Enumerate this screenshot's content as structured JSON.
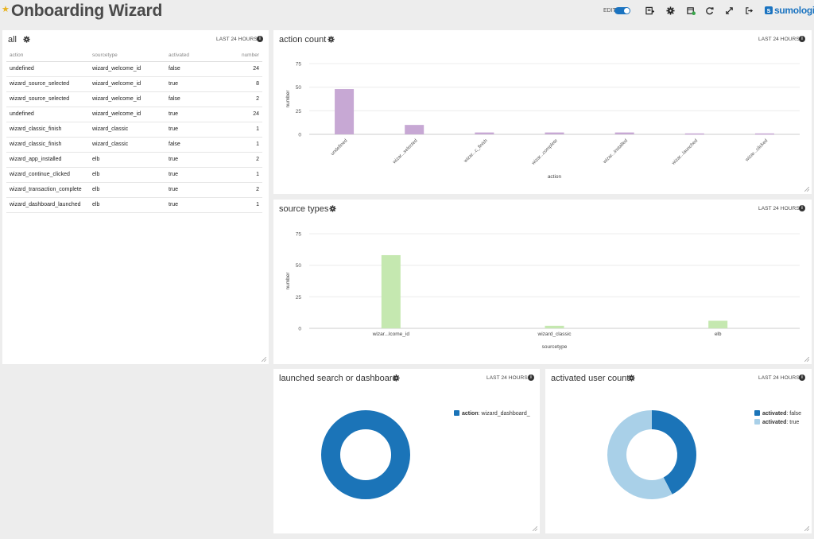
{
  "header": {
    "title": "Onboarding Wizard",
    "edit_label": "EDIT",
    "brand": "sumologic"
  },
  "panels": {
    "all": {
      "title": "all",
      "range": "LAST 24 HOURS",
      "columns": [
        "action",
        "sourcetype",
        "activated",
        "number"
      ],
      "rows": [
        [
          "undefined",
          "wizard_welcome_id",
          "false",
          "24"
        ],
        [
          "wizard_source_selected",
          "wizard_welcome_id",
          "true",
          "8"
        ],
        [
          "wizard_source_selected",
          "wizard_welcome_id",
          "false",
          "2"
        ],
        [
          "undefined",
          "wizard_welcome_id",
          "true",
          "24"
        ],
        [
          "wizard_classic_finish",
          "wizard_classic",
          "true",
          "1"
        ],
        [
          "wizard_classic_finish",
          "wizard_classic",
          "false",
          "1"
        ],
        [
          "wizard_app_installed",
          "elb",
          "true",
          "2"
        ],
        [
          "wizard_continue_clicked",
          "elb",
          "true",
          "1"
        ],
        [
          "wizard_transaction_complete",
          "elb",
          "true",
          "2"
        ],
        [
          "wizard_dashboard_launched",
          "elb",
          "true",
          "1"
        ]
      ]
    },
    "action_count": {
      "title": "action count",
      "range": "LAST 24 HOURS"
    },
    "source_types": {
      "title": "source types",
      "range": "LAST 24 HOURS"
    },
    "launched": {
      "title": "launched search or dashboard",
      "range": "LAST 24 HOURS"
    },
    "activated": {
      "title": "activated user count",
      "range": "LAST 24 HOURS"
    }
  },
  "chart_data": [
    {
      "id": "action_count",
      "type": "bar",
      "categories": [
        "undefined",
        "wizar...selected",
        "wizar...c_finish",
        "wizar...complete",
        "wizar...installed",
        "wizar...launched",
        "wizar...clicked"
      ],
      "values": [
        48,
        10,
        2,
        2,
        2,
        1,
        1
      ],
      "xlabel": "action",
      "ylabel": "number",
      "ylim": [
        0,
        75
      ],
      "yticks": [
        0,
        25,
        50,
        75
      ],
      "color": "#c7a8d4",
      "grid": true
    },
    {
      "id": "source_types",
      "type": "bar",
      "categories": [
        "wizar...lcome_id",
        "wizard_classic",
        "elb"
      ],
      "values": [
        58,
        2,
        6
      ],
      "xlabel": "sourcetype",
      "ylabel": "number",
      "ylim": [
        0,
        75
      ],
      "yticks": [
        0,
        25,
        50,
        75
      ],
      "color": "#c5e8b0",
      "grid": true
    },
    {
      "id": "launched",
      "type": "pie",
      "donut": true,
      "legend_position": "top-right",
      "slices": [
        {
          "key": "action",
          "label": "wizard_dashboard_",
          "value": 1,
          "color": "#1b74b8"
        }
      ]
    },
    {
      "id": "activated",
      "type": "pie",
      "donut": true,
      "legend_position": "top-right",
      "slices": [
        {
          "key": "activated",
          "label": "false",
          "value": 28,
          "color": "#1b74b8"
        },
        {
          "key": "activated",
          "label": "true",
          "value": 38,
          "color": "#a9d0e8"
        }
      ]
    }
  ]
}
